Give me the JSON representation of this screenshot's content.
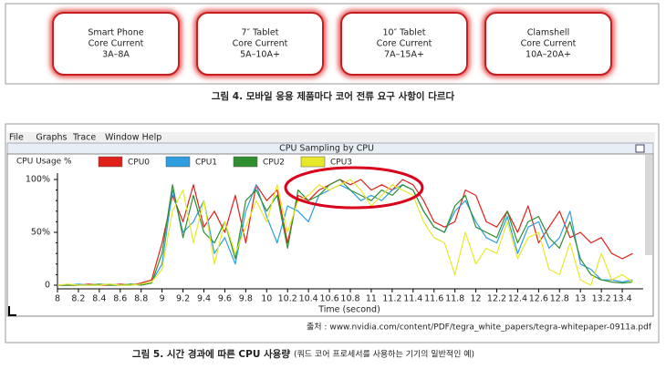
{
  "figure4": {
    "boxes": [
      {
        "lines": [
          "Smart Phone",
          "Core Current",
          "3A–8A"
        ]
      },
      {
        "lines": [
          "7″ Tablet",
          "Core Current",
          "5A–10A+"
        ]
      },
      {
        "lines": [
          "10″ Tablet",
          "Core Current",
          "7A–15A+"
        ]
      },
      {
        "lines": [
          "Clamshell",
          "Core Current",
          "10A–20A+"
        ]
      }
    ],
    "caption": "그림 4. 모바일 응용 제품마다 코어 전류 요구 사항이 다르다"
  },
  "figure5": {
    "menu": [
      "File",
      "Graphs",
      "Trace",
      "Window",
      "Help"
    ],
    "source": "출처 : www.nvidia.com/content/PDF/tegra_white_papers/tegra-whitepaper-0911a.pdf",
    "caption": "그림 5. 시간 경과에 따른 CPU 사용량",
    "caption_note": "(쿼드 코어 프로세서를 사용하는 기기의 일반적인 예)"
  },
  "chart_data": {
    "type": "line",
    "title": "CPU Sampling by CPU",
    "legend_title": "CPU Usage %",
    "xlabel": "Time (second)",
    "x": [
      8,
      8.1,
      8.2,
      8.3,
      8.4,
      8.5,
      8.6,
      8.7,
      8.8,
      8.9,
      9,
      9.1,
      9.2,
      9.3,
      9.4,
      9.5,
      9.6,
      9.7,
      9.8,
      9.9,
      10,
      10.1,
      10.2,
      10.3,
      10.4,
      10.5,
      10.6,
      10.7,
      10.8,
      10.9,
      11,
      11.1,
      11.2,
      11.3,
      11.4,
      11.5,
      11.6,
      11.7,
      11.8,
      11.9,
      12,
      12.1,
      12.2,
      12.3,
      12.4,
      12.5,
      12.6,
      12.7,
      12.8,
      12.9,
      13,
      13.1,
      13.2,
      13.3,
      13.4,
      13.5
    ],
    "series": [
      {
        "name": "CPU0",
        "color": "#e0201b",
        "values": [
          0,
          0,
          0,
          1,
          0,
          0,
          1,
          0,
          2,
          5,
          40,
          85,
          60,
          95,
          55,
          70,
          50,
          85,
          40,
          95,
          80,
          90,
          40,
          85,
          80,
          90,
          95,
          100,
          95,
          100,
          90,
          95,
          90,
          100,
          95,
          80,
          60,
          55,
          60,
          90,
          85,
          60,
          55,
          70,
          50,
          75,
          40,
          55,
          70,
          45,
          50,
          40,
          45,
          30,
          25,
          30
        ]
      },
      {
        "name": "CPU1",
        "color": "#2f9ee0",
        "values": [
          0,
          0,
          1,
          0,
          0,
          1,
          0,
          0,
          1,
          3,
          20,
          90,
          50,
          60,
          80,
          30,
          45,
          20,
          70,
          95,
          65,
          40,
          75,
          70,
          60,
          85,
          90,
          95,
          90,
          80,
          85,
          80,
          90,
          95,
          90,
          70,
          55,
          50,
          70,
          80,
          60,
          45,
          40,
          65,
          30,
          55,
          60,
          35,
          45,
          70,
          20,
          15,
          5,
          5,
          3,
          5
        ]
      },
      {
        "name": "CPU2",
        "color": "#2f8f2f",
        "values": [
          0,
          0,
          0,
          0,
          1,
          0,
          0,
          1,
          0,
          2,
          30,
          95,
          45,
          85,
          50,
          40,
          60,
          25,
          80,
          90,
          70,
          85,
          35,
          90,
          80,
          85,
          95,
          100,
          90,
          85,
          80,
          90,
          85,
          95,
          90,
          70,
          55,
          50,
          75,
          85,
          55,
          50,
          45,
          70,
          40,
          60,
          65,
          45,
          35,
          60,
          25,
          10,
          5,
          3,
          2,
          3
        ]
      },
      {
        "name": "CPU3",
        "color": "#e8e82a",
        "values": [
          0,
          1,
          0,
          0,
          0,
          1,
          0,
          0,
          1,
          3,
          15,
          70,
          90,
          40,
          80,
          20,
          60,
          30,
          55,
          80,
          60,
          95,
          50,
          80,
          85,
          95,
          90,
          95,
          100,
          90,
          75,
          85,
          95,
          90,
          85,
          60,
          45,
          40,
          10,
          50,
          20,
          35,
          30,
          60,
          25,
          45,
          50,
          15,
          10,
          40,
          5,
          0,
          30,
          5,
          10,
          3
        ]
      }
    ],
    "xlim": [
      8,
      13.6
    ],
    "xticks": [
      8,
      8.2,
      8.4,
      8.6,
      8.8,
      9,
      9.2,
      9.4,
      9.6,
      9.8,
      10,
      10.2,
      10.4,
      10.6,
      10.8,
      11,
      11.2,
      11.4,
      11.6,
      11.8,
      12,
      12.2,
      12.4,
      12.6,
      12.8,
      13,
      13.2,
      13.4
    ],
    "ylim": [
      0,
      100
    ],
    "yticks": [
      0,
      {
        "value": 50,
        "label": "50%"
      },
      {
        "value": 100,
        "label": "100%"
      }
    ]
  }
}
